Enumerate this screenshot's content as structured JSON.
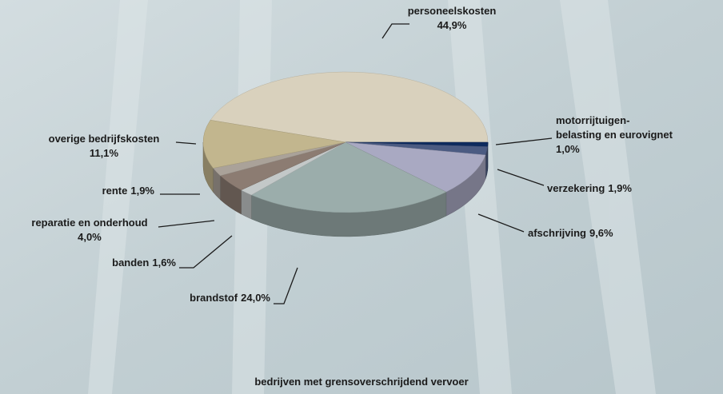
{
  "chart_data": {
    "type": "pie",
    "caption": "bedrijven met grensoverschrijdend vervoer",
    "categories": [
      "personeelskosten",
      "motorrijtuigen-\nbelasting en eurovignet",
      "verzekering",
      "afschrijving",
      "brandstof",
      "banden",
      "reparatie en onderhoud",
      "rente",
      "overige bedrijfskosten"
    ],
    "values": [
      44.9,
      1.0,
      1.9,
      9.6,
      24.0,
      1.6,
      4.0,
      1.9,
      11.1
    ],
    "value_labels": [
      "44,9%",
      "1,0%",
      "1,9%",
      "9,6%",
      "24,0%",
      "1,6%",
      "4,0%",
      "1,9%",
      "11,1%"
    ],
    "colors": [
      "#d9d1bd",
      "#0e2b5e",
      "#4b5b82",
      "#a9a9c2",
      "#9badab",
      "#c3c8c8",
      "#8c7c72",
      "#aaa299",
      "#c2b68e"
    ]
  }
}
